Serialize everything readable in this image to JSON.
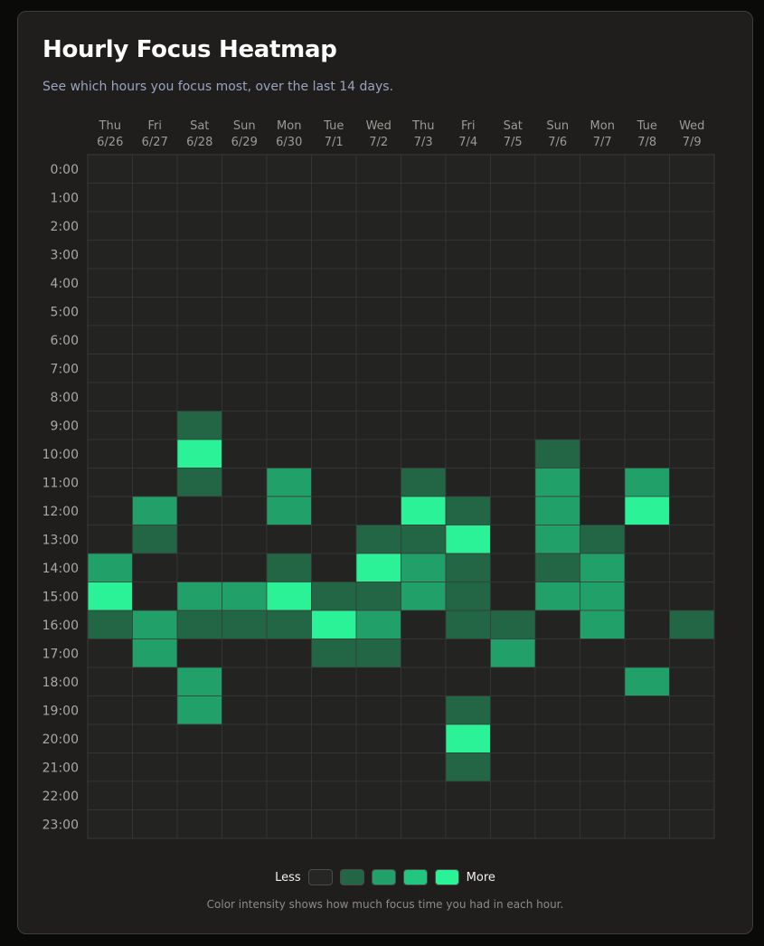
{
  "header": {
    "title": "Hourly Focus Heatmap",
    "subtitle": "See which hours you focus most, over the last 14 days."
  },
  "legend": {
    "less_label": "Less",
    "more_label": "More",
    "colors": [
      "#262625",
      "#226645",
      "#21a06a",
      "#22c67e",
      "#2bf297"
    ],
    "note": "Color intensity shows how much focus time you had in each hour."
  },
  "colors": {
    "background": "#0a0a09",
    "card": "#1f1e1c",
    "empty_cell": "#232322",
    "grid_line": "#3a3a38"
  },
  "chart_data": {
    "type": "heatmap",
    "title": "Hourly Focus Heatmap",
    "value_scale": "0 = none, 4 = most focus",
    "x_days": [
      "Thu",
      "Fri",
      "Sat",
      "Sun",
      "Mon",
      "Tue",
      "Wed",
      "Thu",
      "Fri",
      "Sat",
      "Sun",
      "Mon",
      "Tue",
      "Wed"
    ],
    "x_dates": [
      "6/26",
      "6/27",
      "6/28",
      "6/29",
      "6/30",
      "7/1",
      "7/2",
      "7/3",
      "7/4",
      "7/5",
      "7/6",
      "7/7",
      "7/8",
      "7/9"
    ],
    "y": [
      "0:00",
      "1:00",
      "2:00",
      "3:00",
      "4:00",
      "5:00",
      "6:00",
      "7:00",
      "8:00",
      "9:00",
      "10:00",
      "11:00",
      "12:00",
      "13:00",
      "14:00",
      "15:00",
      "16:00",
      "17:00",
      "18:00",
      "19:00",
      "20:00",
      "21:00",
      "22:00",
      "23:00"
    ],
    "values": [
      [
        0,
        0,
        0,
        0,
        0,
        0,
        0,
        0,
        0,
        0,
        0,
        0,
        0,
        0
      ],
      [
        0,
        0,
        0,
        0,
        0,
        0,
        0,
        0,
        0,
        0,
        0,
        0,
        0,
        0
      ],
      [
        0,
        0,
        0,
        0,
        0,
        0,
        0,
        0,
        0,
        0,
        0,
        0,
        0,
        0
      ],
      [
        0,
        0,
        0,
        0,
        0,
        0,
        0,
        0,
        0,
        0,
        0,
        0,
        0,
        0
      ],
      [
        0,
        0,
        0,
        0,
        0,
        0,
        0,
        0,
        0,
        0,
        0,
        0,
        0,
        0
      ],
      [
        0,
        0,
        0,
        0,
        0,
        0,
        0,
        0,
        0,
        0,
        0,
        0,
        0,
        0
      ],
      [
        0,
        0,
        0,
        0,
        0,
        0,
        0,
        0,
        0,
        0,
        0,
        0,
        0,
        0
      ],
      [
        0,
        0,
        0,
        0,
        0,
        0,
        0,
        0,
        0,
        0,
        0,
        0,
        0,
        0
      ],
      [
        0,
        0,
        0,
        0,
        0,
        0,
        0,
        0,
        0,
        0,
        0,
        0,
        0,
        0
      ],
      [
        0,
        0,
        1,
        0,
        0,
        0,
        0,
        0,
        0,
        0,
        0,
        0,
        0,
        0
      ],
      [
        0,
        0,
        4,
        0,
        0,
        0,
        0,
        0,
        0,
        0,
        1,
        0,
        0,
        0
      ],
      [
        0,
        0,
        1,
        0,
        2,
        0,
        0,
        1,
        0,
        0,
        2,
        0,
        2,
        0
      ],
      [
        0,
        2,
        0,
        0,
        2,
        0,
        0,
        4,
        1,
        0,
        2,
        0,
        4,
        0
      ],
      [
        0,
        1,
        0,
        0,
        0,
        0,
        1,
        1,
        4,
        0,
        2,
        1,
        0,
        0
      ],
      [
        2,
        0,
        0,
        0,
        1,
        0,
        4,
        2,
        1,
        0,
        1,
        2,
        0,
        0
      ],
      [
        4,
        0,
        2,
        2,
        4,
        1,
        1,
        2,
        1,
        0,
        2,
        2,
        0,
        0
      ],
      [
        1,
        2,
        1,
        1,
        1,
        4,
        2,
        0,
        1,
        1,
        0,
        2,
        0,
        1
      ],
      [
        0,
        2,
        0,
        0,
        0,
        1,
        1,
        0,
        0,
        2,
        0,
        0,
        0,
        0
      ],
      [
        0,
        0,
        2,
        0,
        0,
        0,
        0,
        0,
        0,
        0,
        0,
        0,
        2,
        0
      ],
      [
        0,
        0,
        2,
        0,
        0,
        0,
        0,
        0,
        1,
        0,
        0,
        0,
        0,
        0
      ],
      [
        0,
        0,
        0,
        0,
        0,
        0,
        0,
        0,
        4,
        0,
        0,
        0,
        0,
        0
      ],
      [
        0,
        0,
        0,
        0,
        0,
        0,
        0,
        0,
        1,
        0,
        0,
        0,
        0,
        0
      ],
      [
        0,
        0,
        0,
        0,
        0,
        0,
        0,
        0,
        0,
        0,
        0,
        0,
        0,
        0
      ],
      [
        0,
        0,
        0,
        0,
        0,
        0,
        0,
        0,
        0,
        0,
        0,
        0,
        0,
        0
      ]
    ],
    "grid": true,
    "legend_position": "bottom"
  }
}
